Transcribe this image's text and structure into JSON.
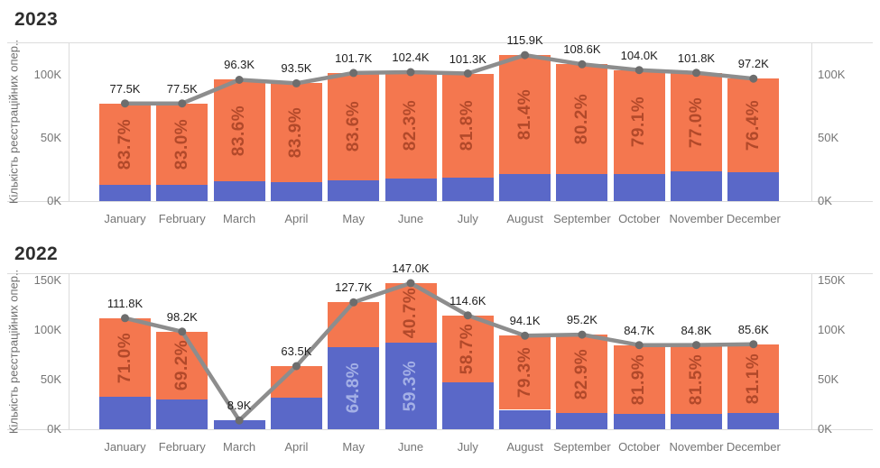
{
  "colors": {
    "bar_orange": "#F4774F",
    "bar_blue": "#5A68C8",
    "pct_orange_text": "#B2492A",
    "pct_blue_text": "#A4B0E6",
    "line": "#8D8D8D",
    "point": "#6D6D6D",
    "axis_text": "#757575",
    "total_text": "#1E1E1E",
    "title_text": "#2E2E2E",
    "border": "#DCDCDC"
  },
  "chart_data": {
    "type": "bar",
    "subtype": "stacked-bar-with-line-overlay",
    "ylabel": "Кількість реєстраційних опер..",
    "legend": "none",
    "charts": [
      {
        "title": "2023",
        "categories": [
          "January",
          "February",
          "March",
          "April",
          "May",
          "June",
          "July",
          "August",
          "September",
          "October",
          "November",
          "December"
        ],
        "totals_k": [
          77.5,
          77.5,
          96.3,
          93.5,
          101.7,
          102.4,
          101.3,
          115.9,
          108.6,
          104.0,
          101.8,
          97.2
        ],
        "total_labels": [
          "77.5K",
          "77.5K",
          "96.3K",
          "93.5K",
          "101.7K",
          "102.4K",
          "101.3K",
          "115.9K",
          "108.6K",
          "104.0K",
          "101.8K",
          "97.2K"
        ],
        "blue_k": [
          12.6,
          13.2,
          15.8,
          15.1,
          16.7,
          18.1,
          18.4,
          21.6,
          21.5,
          21.7,
          23.4,
          22.9
        ],
        "orange_pct_labels": [
          "83.7%",
          "83.0%",
          "83.6%",
          "83.9%",
          "83.6%",
          "82.3%",
          "81.8%",
          "81.4%",
          "80.2%",
          "79.1%",
          "77.0%",
          "76.4%"
        ],
        "blue_pct_labels": [
          null,
          null,
          null,
          null,
          null,
          null,
          null,
          null,
          null,
          null,
          null,
          null
        ],
        "line_values_k": [
          77.5,
          77.5,
          96.3,
          93.5,
          101.7,
          102.4,
          101.3,
          115.9,
          108.6,
          104.0,
          101.8,
          97.2
        ],
        "y_ticks": [
          {
            "label": "0K",
            "value": 0
          },
          {
            "label": "50K",
            "value": 50
          },
          {
            "label": "100K",
            "value": 100
          }
        ],
        "ymax_k": 126
      },
      {
        "title": "2022",
        "categories": [
          "January",
          "February",
          "March",
          "April",
          "May",
          "June",
          "July",
          "August",
          "September",
          "October",
          "November",
          "December"
        ],
        "totals_k": [
          111.8,
          98.2,
          8.9,
          63.5,
          127.7,
          147.0,
          114.6,
          94.1,
          95.2,
          84.7,
          84.8,
          85.6
        ],
        "total_labels": [
          "111.8K",
          "98.2K",
          "8.9K",
          "63.5K",
          "127.7K",
          "147.0K",
          "114.6K",
          "94.1K",
          "95.2K",
          "84.7K",
          "84.8K",
          "85.6K"
        ],
        "blue_k": [
          32.4,
          30.2,
          8.9,
          32.0,
          82.8,
          87.2,
          47.3,
          19.5,
          16.3,
          15.3,
          15.7,
          16.2
        ],
        "orange_pct_labels": [
          "71.0%",
          "69.2%",
          null,
          null,
          null,
          "40.7%",
          "58.7%",
          "79.3%",
          "82.9%",
          "81.9%",
          "81.5%",
          "81.1%"
        ],
        "blue_pct_labels": [
          null,
          null,
          null,
          null,
          "64.8%",
          "59.3%",
          null,
          null,
          null,
          null,
          null,
          null
        ],
        "line_values_k": [
          111.8,
          98.2,
          8.9,
          63.5,
          127.7,
          147.0,
          114.6,
          94.1,
          95.2,
          84.7,
          84.8,
          85.6
        ],
        "y_ticks": [
          {
            "label": "0K",
            "value": 0
          },
          {
            "label": "50K",
            "value": 50
          },
          {
            "label": "100K",
            "value": 100
          },
          {
            "label": "150K",
            "value": 150
          }
        ],
        "ymax_k": 157
      }
    ]
  }
}
